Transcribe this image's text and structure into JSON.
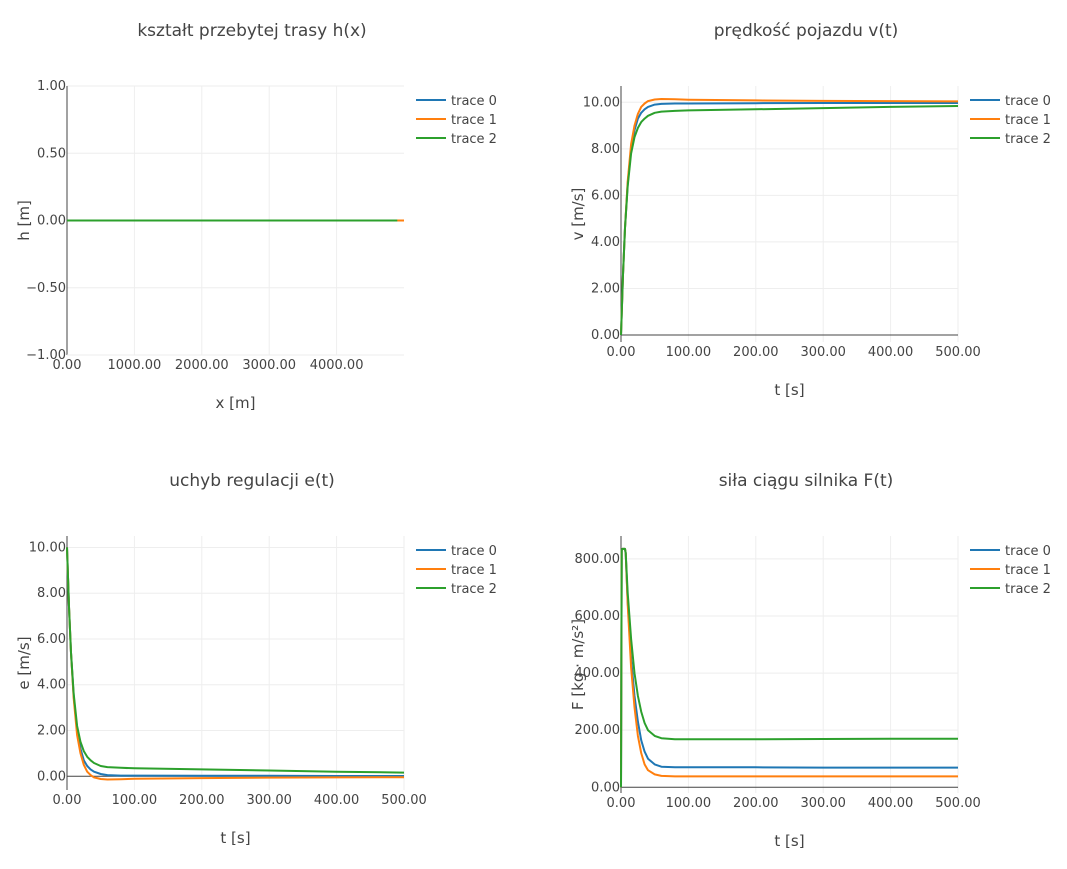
{
  "series_colors": [
    "#1f77b4",
    "#ff7f0e",
    "#2ca02c"
  ],
  "chart_data": [
    {
      "type": "line",
      "title": "kształt przebytej trasy h(x)",
      "xlabel": "x [m]",
      "ylabel": "h [m]",
      "xlim": [
        0,
        5000
      ],
      "ylim": [
        -1,
        1
      ],
      "xticks": [
        0,
        1000,
        2000,
        3000,
        4000
      ],
      "xtick_labels": [
        "0.00",
        "1000.00",
        "2000.00",
        "3000.00",
        "4000.00"
      ],
      "yticks": [
        -1,
        -0.5,
        0,
        0.5,
        1
      ],
      "ytick_labels": [
        "−1.00",
        "−0.50",
        "0.00",
        "0.50",
        "1.00"
      ],
      "grid": true,
      "legend": "top-right",
      "series": [
        {
          "name": "trace 0",
          "x": [
            0,
            4960
          ],
          "y": [
            0,
            0
          ]
        },
        {
          "name": "trace 1",
          "x": [
            0,
            5000
          ],
          "y": [
            0,
            0
          ]
        },
        {
          "name": "trace 2",
          "x": [
            0,
            4900
          ],
          "y": [
            0,
            0
          ]
        }
      ]
    },
    {
      "type": "line",
      "title": "prędkość pojazdu v(t)",
      "xlabel": "t [s]",
      "ylabel": "v [m/s]",
      "xlim": [
        0,
        500
      ],
      "ylim": [
        -0.3,
        10.7
      ],
      "xticks": [
        0,
        100,
        200,
        300,
        400,
        500
      ],
      "xtick_labels": [
        "0.00",
        "100.00",
        "200.00",
        "300.00",
        "400.00",
        "500.00"
      ],
      "yticks": [
        0,
        2,
        4,
        6,
        8,
        10
      ],
      "ytick_labels": [
        "0.00",
        "2.00",
        "4.00",
        "6.00",
        "8.00",
        "10.00"
      ],
      "grid": true,
      "legend": "top-right",
      "series": [
        {
          "name": "trace 0",
          "x": [
            0,
            3,
            6,
            10,
            15,
            20,
            25,
            30,
            35,
            40,
            50,
            60,
            80,
            100,
            200,
            300,
            400,
            500
          ],
          "y": [
            0,
            2.6,
            4.6,
            6.5,
            8.0,
            8.8,
            9.3,
            9.55,
            9.7,
            9.8,
            9.9,
            9.93,
            9.95,
            9.95,
            9.96,
            9.97,
            9.97,
            9.97
          ]
        },
        {
          "name": "trace 1",
          "x": [
            0,
            3,
            6,
            10,
            15,
            20,
            25,
            30,
            35,
            40,
            50,
            60,
            80,
            100,
            200,
            300,
            400,
            500
          ],
          "y": [
            0,
            2.6,
            4.6,
            6.6,
            8.2,
            9.0,
            9.5,
            9.8,
            9.95,
            10.05,
            10.12,
            10.14,
            10.13,
            10.11,
            10.08,
            10.06,
            10.05,
            10.04
          ]
        },
        {
          "name": "trace 2",
          "x": [
            0,
            3,
            6,
            10,
            15,
            20,
            25,
            30,
            35,
            40,
            50,
            60,
            80,
            100,
            200,
            300,
            400,
            500
          ],
          "y": [
            0,
            2.6,
            4.6,
            6.4,
            7.8,
            8.5,
            8.9,
            9.15,
            9.3,
            9.42,
            9.55,
            9.6,
            9.63,
            9.65,
            9.7,
            9.75,
            9.8,
            9.84
          ]
        }
      ]
    },
    {
      "type": "line",
      "title": "uchyb regulacji e(t)",
      "xlabel": "t [s]",
      "ylabel": "e [m/s]",
      "xlim": [
        0,
        500
      ],
      "ylim": [
        -0.6,
        10.5
      ],
      "xticks": [
        0,
        100,
        200,
        300,
        400,
        500
      ],
      "xtick_labels": [
        "0.00",
        "100.00",
        "200.00",
        "300.00",
        "400.00",
        "500.00"
      ],
      "yticks": [
        0,
        2,
        4,
        6,
        8,
        10
      ],
      "ytick_labels": [
        "0.00",
        "2.00",
        "4.00",
        "6.00",
        "8.00",
        "10.00"
      ],
      "grid": true,
      "legend": "top-right",
      "series": [
        {
          "name": "trace 0",
          "x": [
            0,
            3,
            6,
            10,
            15,
            20,
            25,
            30,
            35,
            40,
            50,
            60,
            80,
            100,
            200,
            300,
            400,
            500
          ],
          "y": [
            10,
            7.4,
            5.4,
            3.5,
            2.0,
            1.2,
            0.7,
            0.45,
            0.3,
            0.2,
            0.1,
            0.05,
            0.03,
            0.03,
            0.02,
            0.02,
            0.01,
            0.01
          ]
        },
        {
          "name": "trace 1",
          "x": [
            0,
            3,
            6,
            10,
            15,
            20,
            25,
            30,
            35,
            40,
            50,
            60,
            80,
            100,
            200,
            300,
            400,
            500
          ],
          "y": [
            10,
            7.4,
            5.4,
            3.4,
            1.8,
            1.0,
            0.5,
            0.2,
            0.05,
            -0.05,
            -0.12,
            -0.14,
            -0.13,
            -0.11,
            -0.08,
            -0.06,
            -0.05,
            -0.04
          ]
        },
        {
          "name": "trace 2",
          "x": [
            0,
            3,
            6,
            10,
            15,
            20,
            25,
            30,
            35,
            40,
            50,
            60,
            80,
            100,
            200,
            300,
            400,
            500
          ],
          "y": [
            10,
            7.4,
            5.4,
            3.6,
            2.2,
            1.5,
            1.1,
            0.85,
            0.7,
            0.58,
            0.45,
            0.4,
            0.37,
            0.35,
            0.3,
            0.25,
            0.2,
            0.16
          ]
        }
      ]
    },
    {
      "type": "line",
      "title": "siła ciągu silnika F(t)",
      "xlabel": "t [s]",
      "ylabel": "F [kg · m/s²]",
      "xlim": [
        0,
        500
      ],
      "ylim": [
        -20,
        880
      ],
      "xticks": [
        0,
        100,
        200,
        300,
        400,
        500
      ],
      "xtick_labels": [
        "0.00",
        "100.00",
        "200.00",
        "300.00",
        "400.00",
        "500.00"
      ],
      "yticks": [
        0,
        200,
        400,
        600,
        800
      ],
      "ytick_labels": [
        "0.00",
        "200.00",
        "400.00",
        "600.00",
        "800.00"
      ],
      "grid": true,
      "legend": "top-right",
      "series": [
        {
          "name": "trace 0",
          "x": [
            0,
            1,
            2,
            6,
            7,
            10,
            15,
            20,
            25,
            30,
            35,
            40,
            50,
            60,
            80,
            100,
            200,
            300,
            400,
            500
          ],
          "y": [
            0,
            830,
            835,
            835,
            820,
            650,
            450,
            320,
            230,
            165,
            125,
            100,
            80,
            72,
            70,
            70,
            70,
            69,
            69,
            69
          ]
        },
        {
          "name": "trace 1",
          "x": [
            0,
            1,
            2,
            6,
            7,
            10,
            15,
            20,
            25,
            30,
            35,
            40,
            50,
            60,
            80,
            100,
            200,
            300,
            400,
            500
          ],
          "y": [
            0,
            830,
            835,
            835,
            820,
            640,
            420,
            280,
            180,
            120,
            80,
            60,
            45,
            40,
            38,
            38,
            38,
            38,
            38,
            38
          ]
        },
        {
          "name": "trace 2",
          "x": [
            0,
            1,
            2,
            6,
            7,
            10,
            15,
            20,
            25,
            30,
            35,
            40,
            50,
            60,
            80,
            100,
            200,
            300,
            400,
            500
          ],
          "y": [
            0,
            830,
            835,
            835,
            820,
            680,
            520,
            400,
            320,
            265,
            225,
            200,
            180,
            172,
            168,
            168,
            168,
            169,
            170,
            170
          ]
        }
      ]
    }
  ]
}
